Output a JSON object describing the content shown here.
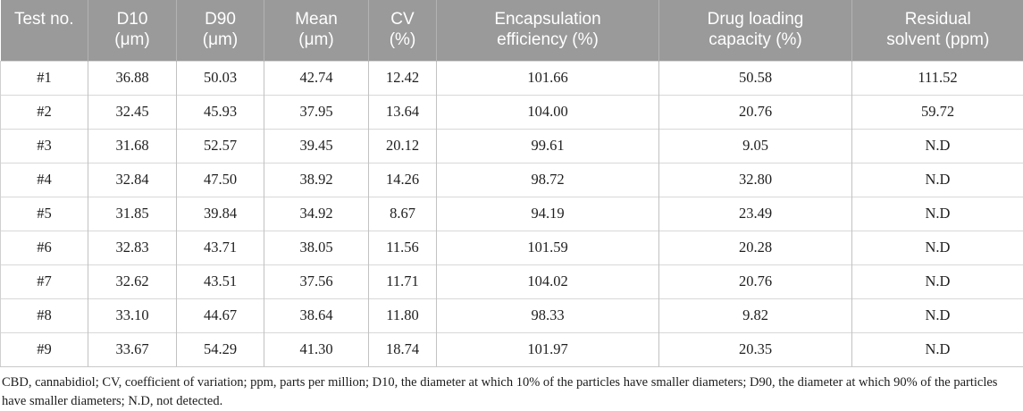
{
  "colors": {
    "header_bg": "#9a9a9a",
    "header_text": "#ffffff",
    "body_text": "#1f1f1f"
  },
  "table": {
    "headers": [
      {
        "l1": "Test no.",
        "l2": ""
      },
      {
        "l1": "D10",
        "l2": "(μm)"
      },
      {
        "l1": "D90",
        "l2": "(μm)"
      },
      {
        "l1": "Mean",
        "l2": "(μm)"
      },
      {
        "l1": "CV",
        "l2": "(%)"
      },
      {
        "l1": "Encapsulation",
        "l2": "efficiency (%)"
      },
      {
        "l1": "Drug loading",
        "l2": "capacity (%)"
      },
      {
        "l1": "Residual",
        "l2": "solvent (ppm)"
      }
    ],
    "rows": [
      [
        "#1",
        "36.88",
        "50.03",
        "42.74",
        "12.42",
        "101.66",
        "50.58",
        "111.52"
      ],
      [
        "#2",
        "32.45",
        "45.93",
        "37.95",
        "13.64",
        "104.00",
        "20.76",
        "59.72"
      ],
      [
        "#3",
        "31.68",
        "52.57",
        "39.45",
        "20.12",
        "99.61",
        "9.05",
        "N.D"
      ],
      [
        "#4",
        "32.84",
        "47.50",
        "38.92",
        "14.26",
        "98.72",
        "32.80",
        "N.D"
      ],
      [
        "#5",
        "31.85",
        "39.84",
        "34.92",
        "8.67",
        "94.19",
        "23.49",
        "N.D"
      ],
      [
        "#6",
        "32.83",
        "43.71",
        "38.05",
        "11.56",
        "101.59",
        "20.28",
        "N.D"
      ],
      [
        "#7",
        "32.62",
        "43.51",
        "37.56",
        "11.71",
        "104.02",
        "20.76",
        "N.D"
      ],
      [
        "#8",
        "33.10",
        "44.67",
        "38.64",
        "11.80",
        "98.33",
        "9.82",
        "N.D"
      ],
      [
        "#9",
        "33.67",
        "54.29",
        "41.30",
        "18.74",
        "101.97",
        "20.35",
        "N.D"
      ]
    ]
  },
  "footnote": {
    "text": "CBD, cannabidiol; CV, coefficient of variation; ppm, parts per million; D10, the diameter at which 10% of the particles have smaller diameters; D90, the diameter at which 90% of the particles have smaller diameters; N.D, not detected."
  }
}
